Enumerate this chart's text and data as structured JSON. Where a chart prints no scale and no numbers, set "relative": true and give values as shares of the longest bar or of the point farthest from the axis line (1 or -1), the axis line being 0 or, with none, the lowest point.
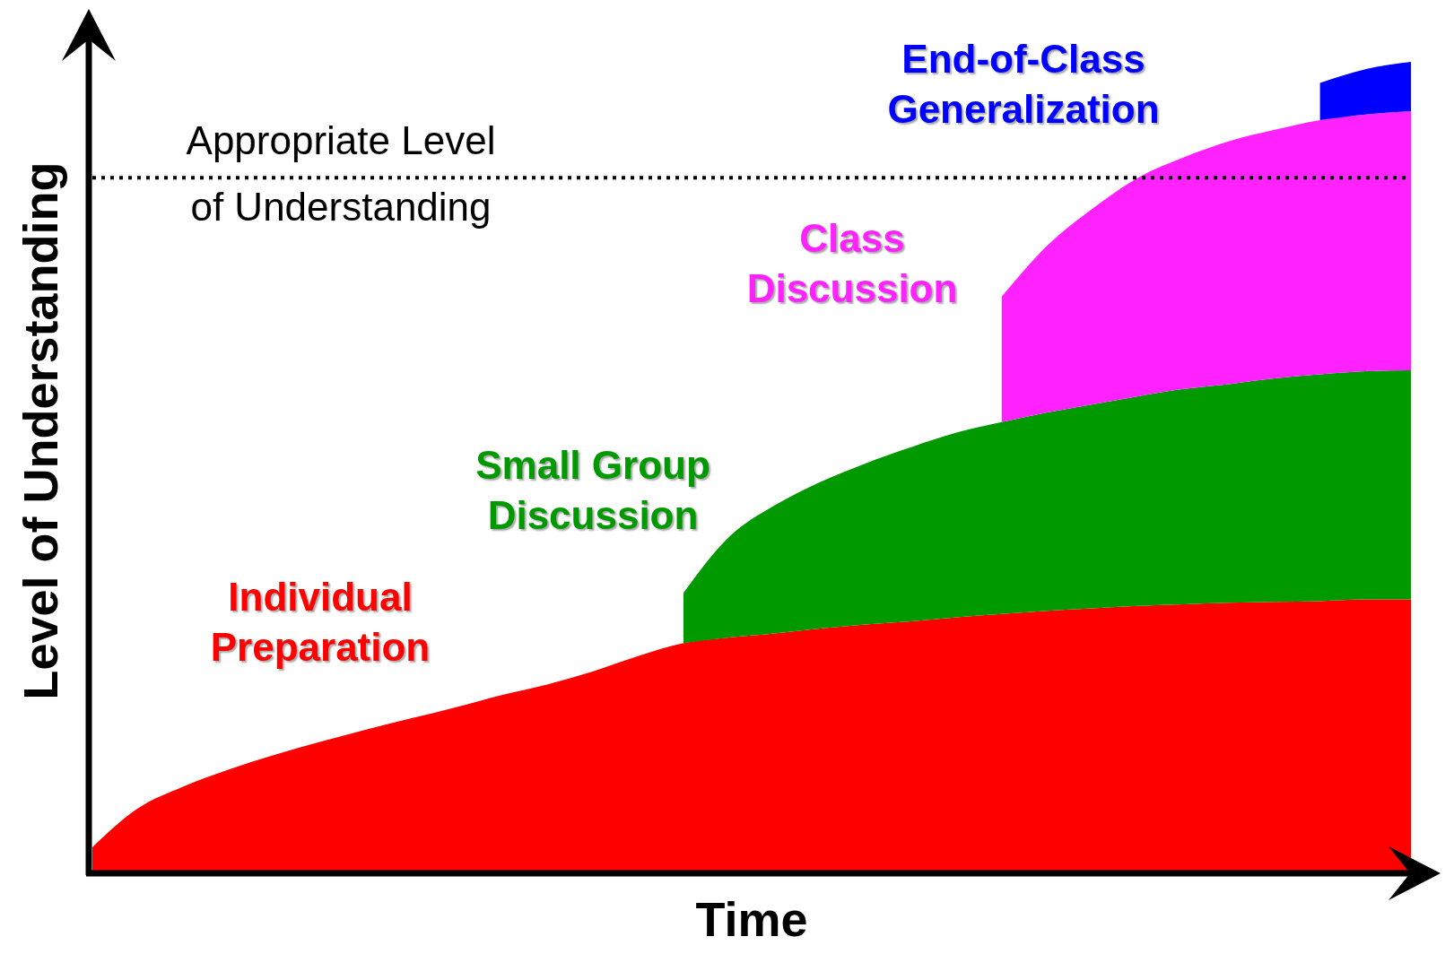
{
  "chart_data": {
    "type": "area",
    "relative": true,
    "stacked": true,
    "xlabel": "Time",
    "ylabel": "Level of Understanding",
    "categories": [
      null,
      null,
      null,
      null,
      null,
      null,
      null,
      null,
      null,
      null,
      null,
      null,
      null,
      null,
      null,
      null,
      null,
      null,
      null,
      null,
      null,
      null,
      null,
      null,
      null,
      null,
      null,
      null,
      null,
      null
    ],
    "series": [
      {
        "name": "Individual Preparation",
        "color": "#ff0000",
        "values": [
          0.03,
          0.078,
          0.105,
          0.126,
          0.144,
          0.16,
          0.175,
          0.189,
          0.203,
          0.218,
          0.231,
          0.247,
          0.266,
          0.282,
          0.289,
          0.294,
          0.3,
          0.305,
          0.309,
          0.314,
          0.318,
          0.322,
          0.325,
          0.328,
          0.33,
          0.332,
          0.333,
          0.334,
          0.336,
          0.336
        ]
      },
      {
        "name": "Small Group Discussion",
        "color": "#009900",
        "values": [
          null,
          null,
          null,
          null,
          null,
          null,
          null,
          null,
          null,
          null,
          null,
          null,
          null,
          0.062,
          0.124,
          0.158,
          0.181,
          0.199,
          0.215,
          0.228,
          0.237,
          0.245,
          0.252,
          0.259,
          0.266,
          0.27,
          0.276,
          0.28,
          0.282,
          0.283
        ]
      },
      {
        "name": "Class Discussion",
        "color": "#ff22ff",
        "values": [
          null,
          null,
          null,
          null,
          null,
          null,
          null,
          null,
          null,
          null,
          null,
          null,
          null,
          null,
          null,
          null,
          null,
          null,
          null,
          null,
          0.155,
          0.206,
          0.242,
          0.27,
          0.286,
          0.3,
          0.307,
          0.314,
          0.317,
          0.32
        ]
      },
      {
        "name": "End-of-Class Generalization",
        "color": "#0000ff",
        "values": [
          null,
          null,
          null,
          null,
          null,
          null,
          null,
          null,
          null,
          null,
          null,
          null,
          null,
          null,
          null,
          null,
          null,
          null,
          null,
          null,
          null,
          null,
          null,
          null,
          null,
          null,
          null,
          0.046,
          0.056,
          0.061
        ]
      }
    ],
    "ref_lines": [
      {
        "axis": "y",
        "value": 0.857,
        "label": "Appropriate Level of Understanding",
        "line_style": "dotted"
      }
    ]
  }
}
